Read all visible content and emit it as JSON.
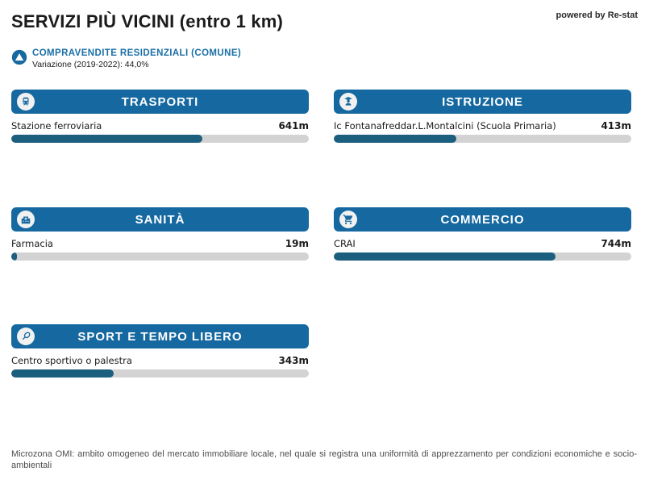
{
  "page": {
    "title": "SERVIZI PIÙ VICINI (entro 1 km)",
    "powered_by": "powered by Re-stat",
    "category": {
      "icon": "circle-triangle-up-icon",
      "label": "COMPRAVENDITE RESIDENZIALI (COMUNE)",
      "sub": "Variazione (2019-2022): 44,0%"
    },
    "footer": "Microzona OMI: ambito omogeneo del mercato immobiliare locale, nel quale si registra una uniformità di apprezzamento per condizioni economiche e socio-ambientali"
  },
  "colors": {
    "header_blue": "#1568a0",
    "bar_fill": "#1c5e7e",
    "bar_track": "#d3d3d3",
    "link_blue": "#1a6fa6"
  },
  "cards": [
    {
      "title": "TRASPORTI",
      "icon": "train-icon",
      "item": "Stazione ferroviaria",
      "distance_label": "641m",
      "distance_m": 641
    },
    {
      "title": "ISTRUZIONE",
      "icon": "graduate-icon",
      "item": "Ic Fontanafreddar.L.Montalcini (Scuola Primaria)",
      "distance_label": "413m",
      "distance_m": 413
    },
    {
      "title": "SANITÀ",
      "icon": "hospital-icon",
      "item": "Farmacia",
      "distance_label": "19m",
      "distance_m": 19
    },
    {
      "title": "COMMERCIO",
      "icon": "shopping-cart-icon",
      "item": "CRAI",
      "distance_label": "744m",
      "distance_m": 744
    },
    {
      "title": "SPORT E TEMPO LIBERO",
      "icon": "tennis-racket-icon",
      "item": "Centro sportivo o palestra",
      "distance_label": "343m",
      "distance_m": 343
    }
  ],
  "chart_data": {
    "type": "bar",
    "orientation": "horizontal",
    "title": "SERVIZI PIÙ VICINI (entro 1 km)",
    "groups": [
      "TRASPORTI",
      "ISTRUZIONE",
      "SANITÀ",
      "COMMERCIO",
      "SPORT E TEMPO LIBERO"
    ],
    "categories": [
      "Stazione ferroviaria",
      "Ic Fontanafreddar.L.Montalcini (Scuola Primaria)",
      "Farmacia",
      "CRAI",
      "Centro sportivo o palestra"
    ],
    "values": [
      641,
      413,
      19,
      744,
      343
    ],
    "unit": "m",
    "xlim": [
      0,
      1000
    ],
    "grid": false,
    "legend": false
  }
}
